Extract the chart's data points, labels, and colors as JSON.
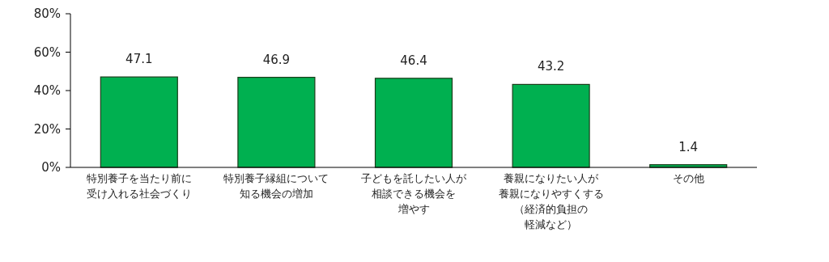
{
  "chart_data": {
    "type": "bar",
    "categories": [
      "特別養子を当たり前に受け入れる社会づくり",
      "特別養子縁組について知る機会の増加",
      "子どもを託したい人が相談できる機会を増やす",
      "養親になりたい人が養親になりやすくする（経済的負担の軽減など）",
      "その他"
    ],
    "values": [
      47.1,
      46.9,
      46.4,
      43.2,
      1.4
    ],
    "color": "#00b050",
    "ylim": [
      0,
      80
    ],
    "yticks": [
      {
        "value": 0,
        "label": "0%"
      },
      {
        "value": 20,
        "label": "20%"
      },
      {
        "value": 40,
        "label": "40%"
      },
      {
        "value": 60,
        "label": "60%"
      },
      {
        "value": 80,
        "label": "80%"
      }
    ],
    "data_labels": true,
    "grid": false,
    "legend": false
  }
}
